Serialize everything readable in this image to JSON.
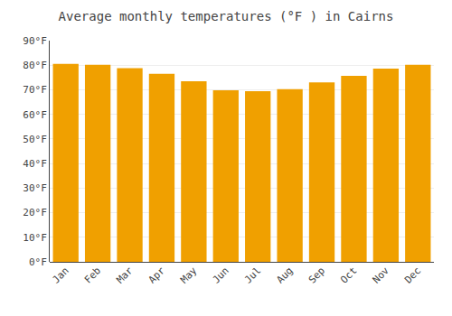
{
  "chart_data": {
    "type": "bar",
    "title": "Average monthly temperatures (°F ) in Cairns",
    "categories": [
      "Jan",
      "Feb",
      "Mar",
      "Apr",
      "May",
      "Jun",
      "Jul",
      "Aug",
      "Sep",
      "Oct",
      "Nov",
      "Dec"
    ],
    "values": [
      80.5,
      80.2,
      78.8,
      76.5,
      73.5,
      69.8,
      69.4,
      70.3,
      73.0,
      75.7,
      78.6,
      80.2
    ],
    "color": "#F0A000",
    "ylim": [
      0,
      90
    ],
    "yticks": [
      {
        "value": 0,
        "label": "0°F"
      },
      {
        "value": 10,
        "label": "10°F"
      },
      {
        "value": 20,
        "label": "20°F"
      },
      {
        "value": 30,
        "label": "30°F"
      },
      {
        "value": 40,
        "label": "40°F"
      },
      {
        "value": 50,
        "label": "50°F"
      },
      {
        "value": 60,
        "label": "60°F"
      },
      {
        "value": 70,
        "label": "70°F"
      },
      {
        "value": 80,
        "label": "80°F"
      },
      {
        "value": 90,
        "label": "90°F"
      }
    ],
    "grid": true
  }
}
